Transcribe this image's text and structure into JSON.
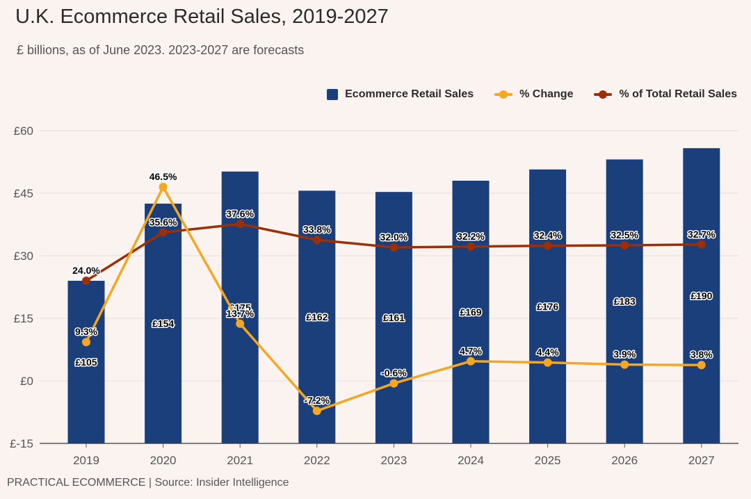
{
  "header": {
    "title": "U.K. Ecommerce Retail Sales, 2019-2027",
    "subtitle": "£ billions, as of June 2023. 2023-2027 are forecasts"
  },
  "footer": {
    "source": "PRACTICAL ECOMMERCE | Source: Insider Intelligence"
  },
  "legend": {
    "items": [
      {
        "label": "Ecommerce Retail Sales",
        "color": "#1b3f7a",
        "kind": "bar"
      },
      {
        "label": "% Change",
        "color": "#f5a623",
        "kind": "line"
      },
      {
        "label": "% of Total Retail Sales",
        "color": "#9b2f05",
        "kind": "line"
      }
    ]
  },
  "chart_data": {
    "type": "bar",
    "categories": [
      "2019",
      "2020",
      "2021",
      "2022",
      "2023",
      "2024",
      "2025",
      "2026",
      "2027"
    ],
    "ylim": [
      -15,
      60
    ],
    "yticks": [
      -15,
      0,
      15,
      30,
      45,
      60
    ],
    "ytick_labels": [
      "£-15",
      "£0",
      "£15",
      "£30",
      "£45",
      "£60"
    ],
    "series": [
      {
        "name": "Ecommerce Retail Sales",
        "type": "bar",
        "color": "#1b3f7a",
        "plot_values": [
          24.0,
          42.5,
          50.2,
          45.6,
          45.3,
          48.0,
          50.7,
          53.1,
          55.8
        ],
        "labels": [
          "£105",
          "£154",
          "£175",
          "£162",
          "£161",
          "£169",
          "£176",
          "£183",
          "£190"
        ]
      },
      {
        "name": "% Change",
        "type": "line",
        "color": "#f5a623",
        "values": [
          9.3,
          46.5,
          13.7,
          -7.2,
          -0.6,
          4.7,
          4.4,
          3.9,
          3.8
        ],
        "labels": [
          "9.3%",
          "46.5%",
          "13.7%",
          "-7.2%",
          "-0.6%",
          "4.7%",
          "4.4%",
          "3.9%",
          "3.8%"
        ]
      },
      {
        "name": "% of Total Retail Sales",
        "type": "line",
        "color": "#9b2f05",
        "values": [
          24.0,
          35.6,
          37.6,
          33.8,
          32.0,
          32.2,
          32.4,
          32.5,
          32.7
        ],
        "labels": [
          "24.0%",
          "35.6%",
          "37.6%",
          "33.8%",
          "32.0%",
          "32.2%",
          "32.4%",
          "32.5%",
          "32.7%"
        ]
      }
    ],
    "title": "U.K. Ecommerce Retail Sales, 2019-2027",
    "xlabel": "",
    "ylabel": "",
    "grid": true,
    "legend_position": "top-right"
  }
}
